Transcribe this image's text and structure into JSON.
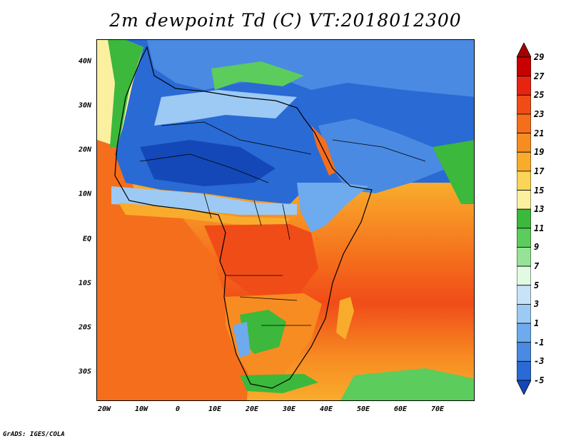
{
  "title": "2m dewpoint Td (C) VT:2018012300",
  "credit": "GrADS: IGES/COLA",
  "lat_labels": [
    "40N",
    "30N",
    "20N",
    "10N",
    "EQ",
    "10S",
    "20S",
    "30S"
  ],
  "lon_labels": [
    "20W",
    "10W",
    "0",
    "10E",
    "20E",
    "30E",
    "40E",
    "50E",
    "60E",
    "70E"
  ],
  "colorbar": {
    "labels": [
      "29",
      "27",
      "25",
      "23",
      "21",
      "19",
      "17",
      "15",
      "13",
      "11",
      "9",
      "7",
      "5",
      "3",
      "1",
      "-1",
      "-3",
      "-5"
    ],
    "colors": [
      "#a50000",
      "#c80000",
      "#e82410",
      "#f04c18",
      "#f56e1c",
      "#f78c22",
      "#f9ac2c",
      "#fbd458",
      "#fbf0a0",
      "#3cb83c",
      "#5ccc5c",
      "#96e296",
      "#e2fae2",
      "#c8e2fa",
      "#9ccaf4",
      "#6eaaee",
      "#4a8ae2",
      "#2a6ad4",
      "#1448b8"
    ]
  }
}
